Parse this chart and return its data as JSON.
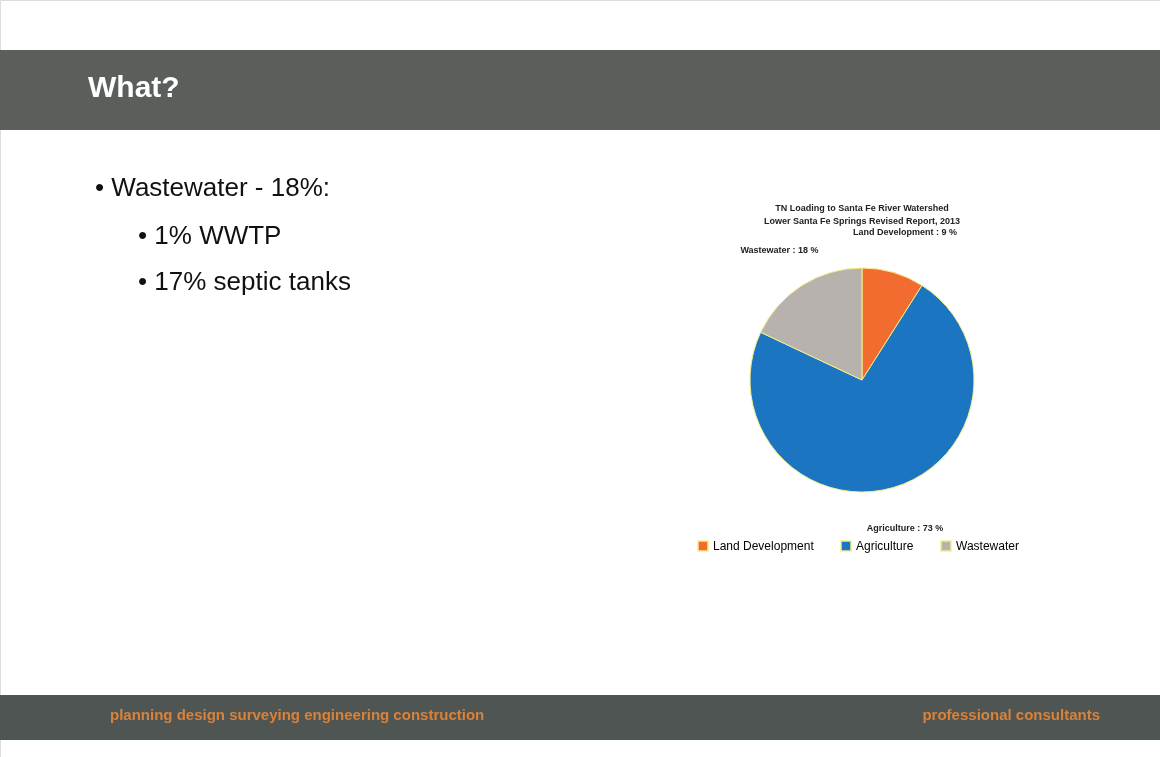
{
  "chart_data": {
    "type": "pie",
    "title": "TN Loading to Santa Fe River Watershed",
    "subtitle": "Lower Santa Fe Springs Revised Report, 2013",
    "categories": [
      "Land Development",
      "Agriculture",
      "Wastewater"
    ],
    "values": [
      9,
      73,
      18
    ],
    "colors": [
      "#f26b2f",
      "#1b75c0",
      "#b7b2ae"
    ],
    "value_labels": [
      "Land Development : 9 %",
      "Agriculture : 73 %",
      "Wastewater : 18 %"
    ],
    "legend": "bottom",
    "annotations": [
      "What?",
      "•   Wastewater - 18%:",
      "•   1% WWTP",
      "•   17% septic tanks",
      "planning design surveying engineering construction",
      "professional consultants"
    ]
  }
}
